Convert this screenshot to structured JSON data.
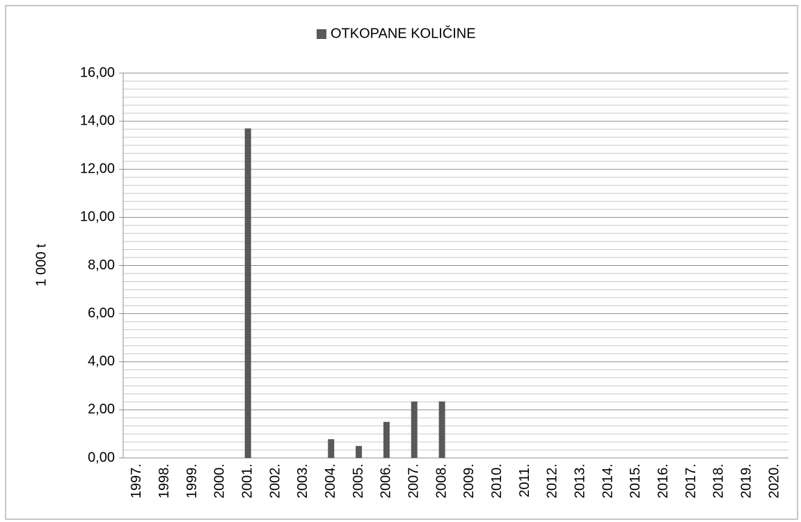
{
  "chart_data": {
    "type": "bar",
    "y_label": "1 000 t",
    "categories": [
      "1997.",
      "1998.",
      "1999.",
      "2000.",
      "2001.",
      "2002.",
      "2003.",
      "2004.",
      "2005.",
      "2006.",
      "2007.",
      "2008.",
      "2009.",
      "2010.",
      "2011.",
      "2012.",
      "2013.",
      "2014.",
      "2015.",
      "2016.",
      "2017.",
      "2018.",
      "2019.",
      "2020."
    ],
    "series": [
      {
        "name": "OTKOPANE KOLIČINE",
        "color": "#595959",
        "values": [
          0,
          0,
          0,
          0,
          13.7,
          0,
          0,
          0.78,
          0.5,
          1.5,
          2.35,
          2.35,
          0,
          0,
          0,
          0,
          0,
          0,
          0,
          0,
          0,
          0,
          0,
          0
        ]
      }
    ],
    "ylim": [
      0,
      16
    ],
    "yticks": [
      {
        "value": 0,
        "label": "0,00"
      },
      {
        "value": 2,
        "label": "2,00"
      },
      {
        "value": 4,
        "label": "4,00"
      },
      {
        "value": 6,
        "label": "6,00"
      },
      {
        "value": 8,
        "label": "8,00"
      },
      {
        "value": 10,
        "label": "10,00"
      },
      {
        "value": 12,
        "label": "12,00"
      },
      {
        "value": 14,
        "label": "14,00"
      },
      {
        "value": 16,
        "label": "16,00"
      }
    ],
    "grid": true,
    "minor_grid_per_major": 6,
    "legend": "top"
  }
}
